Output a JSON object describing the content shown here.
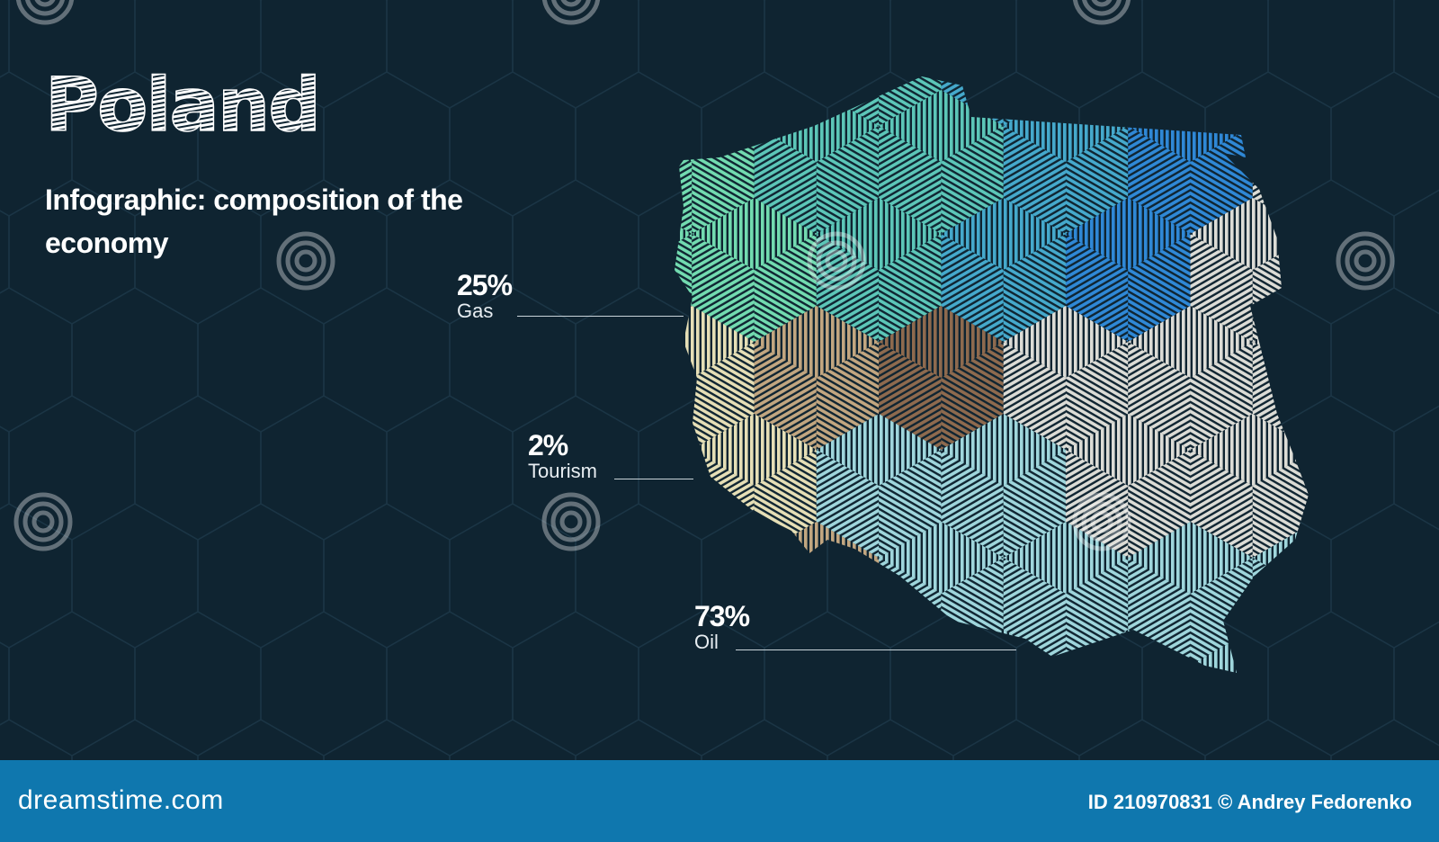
{
  "header": {
    "title": "Poland",
    "subtitle": "Infographic: composition of the economy"
  },
  "stats": [
    {
      "percent": "25%",
      "label": "Gas"
    },
    {
      "percent": "2%",
      "label": "Tourism"
    },
    {
      "percent": "73%",
      "label": "Oil"
    }
  ],
  "chart_data": {
    "type": "map",
    "region": "Poland",
    "entries": [
      {
        "label": "Gas",
        "value": 25
      },
      {
        "label": "Tourism",
        "value": 2
      },
      {
        "label": "Oil",
        "value": 73
      }
    ]
  },
  "colors": {
    "background": "#0f2431",
    "footer": "#0f77ae",
    "palette": [
      "#72dbb0",
      "#5cc6b8",
      "#45a9cc",
      "#2f88d6",
      "#c2a680",
      "#8e6a4e",
      "#e6dfb6",
      "#dcdcd6",
      "#9fd6dc"
    ]
  },
  "watermark": {
    "text": "dreamstime"
  },
  "footer": {
    "brand": "dreamstime.com",
    "credit": "ID 210970831 © Andrey Fedorenko"
  }
}
